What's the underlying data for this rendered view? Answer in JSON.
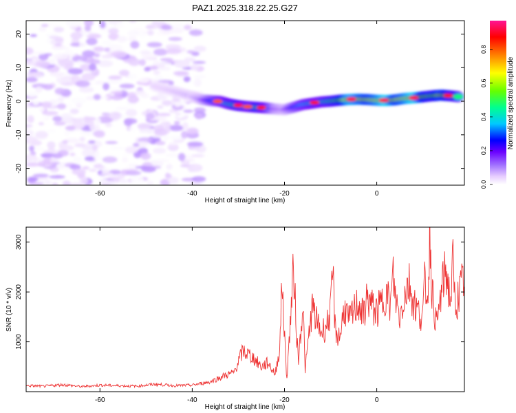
{
  "figure": {
    "title": "PAZ1.2025.318.22.25.G27"
  },
  "chart_data": [
    {
      "type": "heatmap",
      "title": "PAZ1.2025.318.22.25.G27",
      "xlabel": "Height of straight line (km)",
      "ylabel": "Frequency (Hz)",
      "xlim": [
        -76,
        19
      ],
      "ylim": [
        -25,
        24
      ],
      "xticks": [
        -60,
        -40,
        -20,
        0
      ],
      "xtick_labels": [
        "-60",
        "-40",
        "-20",
        "0"
      ],
      "yticks": [
        -20,
        -10,
        0,
        10,
        20
      ],
      "ytick_labels": [
        "-20",
        "-10",
        "0",
        "10",
        "20"
      ],
      "colorbar": {
        "label": "Normalized spectral amplitude",
        "range": [
          0.0,
          0.97
        ],
        "ticks": [
          0.0,
          0.2,
          0.4,
          0.6,
          0.8
        ],
        "tick_labels": [
          "0.0",
          "0.2",
          "0.4",
          "0.6",
          "0.8"
        ],
        "colormap": [
          "#ffffff",
          "#e6ccff",
          "#a070ff",
          "#6a00ff",
          "#0000ff",
          "#00c8ff",
          "#00ff90",
          "#66ff00",
          "#ffff00",
          "#ff8000",
          "#ff0000",
          "#ff1493"
        ]
      },
      "noise_region": {
        "x_range": [
          -76,
          -38
        ],
        "frequency_range": [
          -25,
          24
        ],
        "amplitude_range": [
          0.0,
          0.15
        ]
      },
      "signal_trace": [
        {
          "x": -48,
          "freq": 4.5,
          "amp": 0.08
        },
        {
          "x": -44,
          "freq": 3.0,
          "amp": 0.1
        },
        {
          "x": -40,
          "freq": 1.5,
          "amp": 0.12
        },
        {
          "x": -38,
          "freq": 0.5,
          "amp": 0.2
        },
        {
          "x": -36,
          "freq": 0.2,
          "amp": 0.35
        },
        {
          "x": -34,
          "freq": 0.0,
          "amp": 0.45
        },
        {
          "x": -32,
          "freq": -0.8,
          "amp": 0.5
        },
        {
          "x": -30,
          "freq": -1.3,
          "amp": 0.55
        },
        {
          "x": -28,
          "freq": -1.6,
          "amp": 0.5
        },
        {
          "x": -26,
          "freq": -1.8,
          "amp": 0.55
        },
        {
          "x": -24,
          "freq": -2.0,
          "amp": 0.5
        },
        {
          "x": -22,
          "freq": -2.3,
          "amp": 0.25
        },
        {
          "x": -20,
          "freq": -2.5,
          "amp": 0.2
        },
        {
          "x": -18,
          "freq": -1.8,
          "amp": 0.35
        },
        {
          "x": -16,
          "freq": -1.0,
          "amp": 0.45
        },
        {
          "x": -14,
          "freq": -0.6,
          "amp": 0.5
        },
        {
          "x": -12,
          "freq": -0.2,
          "amp": 0.5
        },
        {
          "x": -10,
          "freq": 0.0,
          "amp": 0.55
        },
        {
          "x": -8,
          "freq": 0.3,
          "amp": 0.6
        },
        {
          "x": -6,
          "freq": 0.5,
          "amp": 0.8
        },
        {
          "x": -4,
          "freq": 0.6,
          "amp": 0.75
        },
        {
          "x": -2,
          "freq": 0.5,
          "amp": 0.7
        },
        {
          "x": 0,
          "freq": 0.3,
          "amp": 0.75
        },
        {
          "x": 2,
          "freq": 0.2,
          "amp": 0.85
        },
        {
          "x": 4,
          "freq": 0.4,
          "amp": 0.7
        },
        {
          "x": 6,
          "freq": 0.8,
          "amp": 0.75
        },
        {
          "x": 8,
          "freq": 1.0,
          "amp": 0.85
        },
        {
          "x": 10,
          "freq": 1.3,
          "amp": 0.65
        },
        {
          "x": 12,
          "freq": 1.6,
          "amp": 0.6
        },
        {
          "x": 14,
          "freq": 1.8,
          "amp": 0.7
        },
        {
          "x": 16,
          "freq": 1.6,
          "amp": 0.6
        },
        {
          "x": 18,
          "freq": 1.3,
          "amp": 0.55
        }
      ],
      "signal_hotspots": [
        {
          "x": -34.5,
          "freq": 0.0,
          "amp": 0.85
        },
        {
          "x": -30,
          "freq": -1.2,
          "amp": 0.95
        },
        {
          "x": -28,
          "freq": -1.6,
          "amp": 0.85
        },
        {
          "x": -25,
          "freq": -1.9,
          "amp": 0.9
        },
        {
          "x": -13.5,
          "freq": -0.4,
          "amp": 0.9
        },
        {
          "x": -5.5,
          "freq": 0.6,
          "amp": 0.95
        },
        {
          "x": 1.5,
          "freq": 0.3,
          "amp": 0.95
        },
        {
          "x": 8,
          "freq": 1.0,
          "amp": 0.95
        },
        {
          "x": 15.5,
          "freq": 1.7,
          "amp": 0.9
        }
      ]
    },
    {
      "type": "line",
      "xlabel": "Height of straight line (km)",
      "ylabel": "SNR (10 * v/v)",
      "xlim": [
        -76,
        19
      ],
      "ylim": [
        0,
        3300
      ],
      "xticks": [
        -60,
        -40,
        -20,
        0
      ],
      "xtick_labels": [
        "-60",
        "-40",
        "-20",
        "0"
      ],
      "yticks": [
        1000,
        2000,
        3000
      ],
      "ytick_labels": [
        "1000",
        "2000",
        "3000"
      ],
      "series": [
        {
          "name": "SNR",
          "color": "#ee3333",
          "x": [
            -76,
            -72,
            -68,
            -64,
            -60,
            -56,
            -52,
            -48,
            -44,
            -40,
            -36,
            -33,
            -31,
            -29,
            -27,
            -25,
            -23.5,
            -22,
            -21,
            -20.5,
            -20,
            -19.5,
            -19,
            -18,
            -17.5,
            -17,
            -16,
            -15.5,
            -15,
            -14,
            -13,
            -12,
            -11,
            -10,
            -9.5,
            -9,
            -8,
            -7,
            -6,
            -5,
            -4,
            -3,
            -2,
            -1,
            0,
            1,
            2,
            3,
            3.5,
            4,
            5,
            6,
            7,
            8,
            9,
            10,
            10.5,
            11,
            11.5,
            12,
            13,
            14,
            15,
            16,
            16.5,
            17,
            18,
            19
          ],
          "y": [
            120,
            110,
            140,
            100,
            130,
            120,
            110,
            150,
            120,
            130,
            200,
            320,
            380,
            820,
            700,
            500,
            580,
            350,
            900,
            2300,
            1100,
            250,
            1000,
            2500,
            1400,
            600,
            1800,
            400,
            900,
            1700,
            1400,
            1200,
            1300,
            1600,
            2400,
            1200,
            1100,
            1700,
            1400,
            1600,
            1800,
            1500,
            1900,
            1700,
            1600,
            1750,
            2000,
            1700,
            2350,
            1900,
            1500,
            1950,
            2200,
            1800,
            1600,
            1500,
            2300,
            1800,
            3250,
            2000,
            1300,
            2000,
            2450,
            1800,
            2600,
            1700,
            2000,
            2300
          ]
        }
      ]
    }
  ]
}
